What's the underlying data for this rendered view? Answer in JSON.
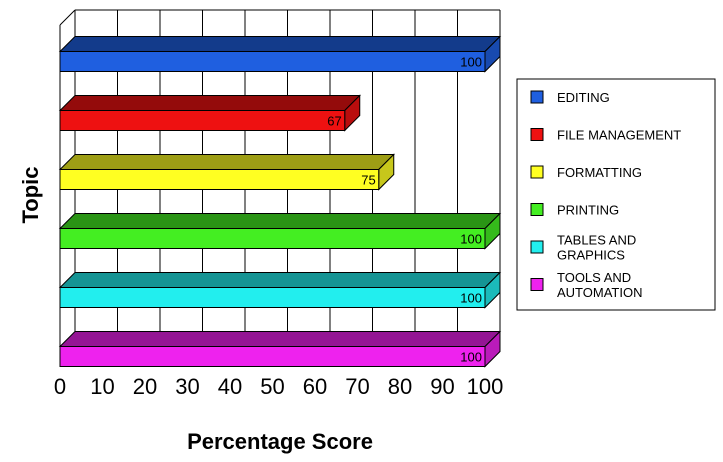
{
  "chart_data": {
    "type": "bar",
    "orientation": "horizontal",
    "three_d": true,
    "title": "",
    "xlabel": "Percentage Score",
    "ylabel": "Topic",
    "xlim": [
      0,
      100
    ],
    "x_ticks": [
      "0",
      "10",
      "20",
      "30",
      "40",
      "50",
      "60",
      "70",
      "80",
      "90",
      "100"
    ],
    "grid": true,
    "legend_position": "right",
    "categories": [
      "EDITING",
      "FILE MANAGEMENT",
      "FORMATTING",
      "PRINTING",
      "TABLES AND GRAPHICS",
      "TOOLS AND AUTOMATION"
    ],
    "series": [
      {
        "values": [
          100,
          67,
          75,
          100,
          100,
          100
        ],
        "value_labels": [
          "100",
          "67",
          "75",
          "100",
          "100",
          "100"
        ]
      }
    ],
    "legend": [
      {
        "lines": [
          "EDITING"
        ],
        "color": "#1f5fe0"
      },
      {
        "lines": [
          "FILE MANAGEMENT"
        ],
        "color": "#ee1111"
      },
      {
        "lines": [
          "FORMATTING"
        ],
        "color": "#ffff22"
      },
      {
        "lines": [
          "PRINTING"
        ],
        "color": "#44ee22"
      },
      {
        "lines": [
          "TABLES AND",
          "GRAPHICS"
        ],
        "color": "#22eeee"
      },
      {
        "lines": [
          "TOOLS AND",
          "AUTOMATION"
        ],
        "color": "#ee22ee"
      }
    ],
    "colors": [
      "#1f5fe0",
      "#ee1111",
      "#ffff22",
      "#44ee22",
      "#22eeee",
      "#ee22ee"
    ]
  }
}
